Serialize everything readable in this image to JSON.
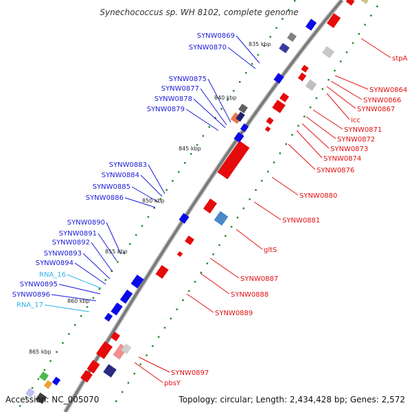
{
  "title": "Synechococcus sp. WH 8102, complete genome",
  "footer": {
    "accession": "Accession: NC_005070",
    "summary": "Topology: circular; Length: 2,434,428 bp; Genes: 2,572"
  },
  "colors": {
    "left_label": "#1a1ad6",
    "rna_label": "#2fb4e6",
    "right_label": "#e01010",
    "left_gene": "#0a0ae6",
    "right_gene": "#e60a0a",
    "backbone": "#808080",
    "tick": "#2a8a2a"
  },
  "kbp_marks": [
    {
      "label": "835 kbp"
    },
    {
      "label": "840 kbp"
    },
    {
      "label": "845 kbp"
    },
    {
      "label": "850 kbp"
    },
    {
      "label": "855 kbp"
    },
    {
      "label": "860 kbp"
    },
    {
      "label": "865 kbp"
    }
  ],
  "left_labels": [
    {
      "text": "SYNW0869",
      "kind": "gene"
    },
    {
      "text": "SYNW0870",
      "kind": "gene"
    },
    {
      "text": "SYNW0875",
      "kind": "gene"
    },
    {
      "text": "SYNW0877",
      "kind": "gene"
    },
    {
      "text": "SYNW0878",
      "kind": "gene"
    },
    {
      "text": "SYNW0879",
      "kind": "gene"
    },
    {
      "text": "SYNW0883",
      "kind": "gene"
    },
    {
      "text": "SYNW0884",
      "kind": "gene"
    },
    {
      "text": "SYNW0885",
      "kind": "gene"
    },
    {
      "text": "SYNW0886",
      "kind": "gene"
    },
    {
      "text": "SYNW0890",
      "kind": "gene"
    },
    {
      "text": "SYNW0891",
      "kind": "gene"
    },
    {
      "text": "SYNW0892",
      "kind": "gene"
    },
    {
      "text": "SYNW0893",
      "kind": "gene"
    },
    {
      "text": "SYNW0894",
      "kind": "gene"
    },
    {
      "text": "RNA_16",
      "kind": "rna"
    },
    {
      "text": "SYNW0895",
      "kind": "gene"
    },
    {
      "text": "SYNW0896",
      "kind": "gene"
    },
    {
      "text": "RNA_17",
      "kind": "rna"
    }
  ],
  "right_labels": [
    {
      "text": "stpA"
    },
    {
      "text": "SYNW0864"
    },
    {
      "text": "SYNW0866"
    },
    {
      "text": "SYNW0867"
    },
    {
      "text": "icc"
    },
    {
      "text": "SYNW0871"
    },
    {
      "text": "SYNW0872"
    },
    {
      "text": "SYNW0873"
    },
    {
      "text": "SYNW0874"
    },
    {
      "text": "SYNW0876"
    },
    {
      "text": "SYNW0880"
    },
    {
      "text": "SYNW0881"
    },
    {
      "text": "gltS"
    },
    {
      "text": "SYNW0887"
    },
    {
      "text": "SYNW0888"
    },
    {
      "text": "SYNW0889"
    },
    {
      "text": "SYNW0897"
    },
    {
      "text": "pbsY"
    }
  ]
}
